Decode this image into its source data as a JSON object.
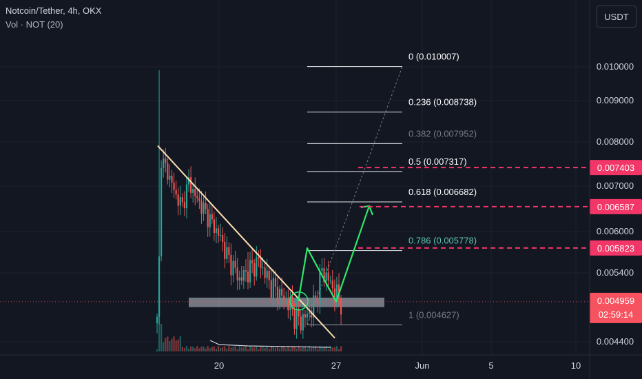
{
  "header": {
    "title": "Notcoin/Tether, 4h, OKX",
    "volume_label": "Vol · NOT (20)",
    "currency_button": "USDT"
  },
  "colors": {
    "background": "#131722",
    "up": "#26a69a",
    "down": "#ef5350",
    "trendline": "#ffe0b2",
    "projection": "#2ee86a",
    "target": "#f23668",
    "current_price_bg": "#f7525f",
    "support_zone": "#9598a1",
    "fib_line": "#d1d4dc"
  },
  "chart_data": {
    "type": "candlestick",
    "symbol": "NOT/USDT",
    "timeframe": "4h",
    "exchange": "OKX",
    "x_axis": {
      "labels": [
        "20",
        "27",
        "Jun",
        "5",
        "10"
      ]
    },
    "y_axis": {
      "scale": "log",
      "range": [
        0.00428,
        0.0116
      ],
      "labels": [
        "0.010000",
        "0.009000",
        "0.008000",
        "0.007000",
        "0.006000",
        "0.005400",
        "0.004400"
      ]
    },
    "fibonacci": [
      {
        "text": "0 (0.010007)",
        "level": 0,
        "price": 0.010007
      },
      {
        "text": "0.236 (0.008738)",
        "level": 0.236,
        "price": 0.008738
      },
      {
        "text": "0.382 (0.007952)",
        "level": 0.382,
        "price": 0.007952
      },
      {
        "text": "0.5 (0.007317)",
        "level": 0.5,
        "price": 0.007317
      },
      {
        "text": "0.618 (0.006682)",
        "level": 0.618,
        "price": 0.006682
      },
      {
        "text": "0.786 (0.005778)",
        "level": 0.786,
        "price": 0.005778
      },
      {
        "text": "1 (0.004627)",
        "level": 1,
        "price": 0.004627
      }
    ],
    "target_levels": [
      {
        "text": "0.007403",
        "price": 0.007403
      },
      {
        "text": "0.006587",
        "price": 0.006587
      },
      {
        "text": "0.005823",
        "price": 0.005823
      }
    ],
    "current_price": {
      "text": "0.004959",
      "price": 0.004959,
      "countdown": "02:59:14"
    },
    "support_zone": [
      0.00488,
      0.00502
    ],
    "trendline": [
      [
        0.0079,
        0.00445
      ]
    ],
    "projection_path": [
      0.00497,
      0.00582,
      0.00496,
      0.0066
    ],
    "price_summary": {
      "start": 0.00465,
      "spike_high": 0.0099,
      "early_high": 0.0079,
      "low": 0.0046,
      "rebound_high": 0.00576,
      "last": 0.004959
    }
  }
}
